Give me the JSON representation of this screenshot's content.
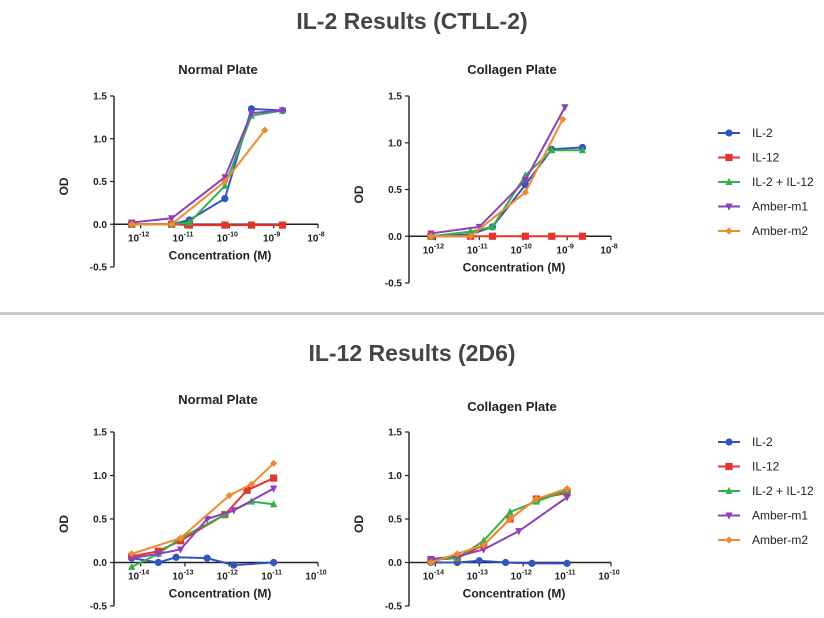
{
  "section_titles": [
    "IL-2 Results (CTLL-2)",
    "IL-12 Results (2D6)"
  ],
  "legend": [
    {
      "name": "IL-2",
      "color": "#2e55c2",
      "marker": "circle"
    },
    {
      "name": "IL-12",
      "color": "#e8332d",
      "marker": "square"
    },
    {
      "name": "IL-2 + IL-12",
      "color": "#2fb34a",
      "marker": "triangle-up"
    },
    {
      "name": "Amber-m1",
      "color": "#8e3fbf",
      "marker": "triangle-down"
    },
    {
      "name": "Amber-m2",
      "color": "#f18a2a",
      "marker": "diamond"
    }
  ],
  "chart_data": [
    {
      "type": "line",
      "title": "Normal Plate",
      "section": "IL-2 Results (CTLL-2)",
      "xlabel": "Concentration (M)",
      "ylabel": "OD",
      "xscale": "log",
      "xlim_exp": [
        -12.6,
        -8
      ],
      "ylim": [
        -0.5,
        1.5
      ],
      "yticks": [
        "1.5",
        "1.0",
        "0.5",
        "0.0",
        "-0.5"
      ],
      "xtick_exps": [
        -12,
        -11,
        -10,
        -9,
        -8
      ],
      "series": [
        {
          "name": "IL-2",
          "points": [
            [
              -12.2,
              0.0
            ],
            [
              -11.3,
              0.0
            ],
            [
              -10.9,
              0.05
            ],
            [
              -10.1,
              0.3
            ],
            [
              -9.5,
              1.35
            ],
            [
              -8.8,
              1.33
            ]
          ]
        },
        {
          "name": "IL-12",
          "points": [
            [
              -12.2,
              0.0
            ],
            [
              -11.3,
              0.0
            ],
            [
              -10.9,
              -0.01
            ],
            [
              -10.1,
              -0.01
            ],
            [
              -9.5,
              -0.01
            ],
            [
              -8.8,
              -0.01
            ]
          ]
        },
        {
          "name": "IL-2 + IL-12",
          "points": [
            [
              -12.2,
              0.0
            ],
            [
              -11.3,
              0.0
            ],
            [
              -10.9,
              0.02
            ],
            [
              -10.1,
              0.45
            ],
            [
              -9.5,
              1.27
            ],
            [
              -8.8,
              1.33
            ]
          ]
        },
        {
          "name": "Amber-m1",
          "points": [
            [
              -12.2,
              0.02
            ],
            [
              -11.3,
              0.07
            ],
            [
              -10.1,
              0.55
            ],
            [
              -9.5,
              1.3
            ],
            [
              -8.8,
              1.33
            ]
          ]
        },
        {
          "name": "Amber-m2",
          "points": [
            [
              -12.2,
              0.0
            ],
            [
              -11.3,
              0.0
            ],
            [
              -10.1,
              0.5
            ],
            [
              -9.2,
              1.1
            ]
          ]
        }
      ]
    },
    {
      "type": "line",
      "title": "Collagen Plate",
      "section": "IL-2 Results (CTLL-2)",
      "xlabel": "Concentration (M)",
      "ylabel": "OD",
      "xscale": "log",
      "xlim_exp": [
        -12.6,
        -8
      ],
      "ylim": [
        -0.5,
        1.5
      ],
      "yticks": [
        "1.5",
        "1.0",
        "0.5",
        "0.0",
        "-0.5"
      ],
      "xtick_exps": [
        -12,
        -11,
        -10,
        -9,
        -8
      ],
      "series": [
        {
          "name": "IL-2",
          "points": [
            [
              -12.1,
              0.0
            ],
            [
              -11.2,
              0.02
            ],
            [
              -10.7,
              0.1
            ],
            [
              -9.95,
              0.55
            ],
            [
              -9.35,
              0.93
            ],
            [
              -8.65,
              0.95
            ]
          ]
        },
        {
          "name": "IL-12",
          "points": [
            [
              -12.1,
              0.0
            ],
            [
              -11.2,
              0.0
            ],
            [
              -10.7,
              0.0
            ],
            [
              -9.95,
              0.0
            ],
            [
              -9.35,
              0.0
            ],
            [
              -8.65,
              0.0
            ]
          ]
        },
        {
          "name": "IL-2 + IL-12",
          "points": [
            [
              -12.1,
              0.0
            ],
            [
              -11.2,
              0.05
            ],
            [
              -10.7,
              0.1
            ],
            [
              -9.95,
              0.65
            ],
            [
              -9.35,
              0.92
            ],
            [
              -8.65,
              0.92
            ]
          ]
        },
        {
          "name": "Amber-m1",
          "points": [
            [
              -12.1,
              0.03
            ],
            [
              -11.0,
              0.1
            ],
            [
              -9.95,
              0.6
            ],
            [
              -9.05,
              1.38
            ]
          ]
        },
        {
          "name": "Amber-m2",
          "points": [
            [
              -12.1,
              0.0
            ],
            [
              -11.2,
              0.0
            ],
            [
              -9.95,
              0.47
            ],
            [
              -9.1,
              1.25
            ]
          ]
        }
      ]
    },
    {
      "type": "line",
      "title": "Normal Plate",
      "section": "IL-12 Results (2D6)",
      "xlabel": "Concentration (M)",
      "ylabel": "OD",
      "xscale": "log",
      "xlim_exp": [
        -14.6,
        -10
      ],
      "ylim": [
        -0.5,
        1.5
      ],
      "yticks": [
        "1.5",
        "1.0",
        "0.5",
        "0.0",
        "-0.5"
      ],
      "xtick_exps": [
        -14,
        -13,
        -12,
        -11,
        -10
      ],
      "series": [
        {
          "name": "IL-2",
          "points": [
            [
              -14.2,
              0.05
            ],
            [
              -13.6,
              0.0
            ],
            [
              -13.2,
              0.06
            ],
            [
              -12.5,
              0.05
            ],
            [
              -11.9,
              -0.03
            ],
            [
              -11.0,
              0.0
            ]
          ]
        },
        {
          "name": "IL-12",
          "points": [
            [
              -14.2,
              0.07
            ],
            [
              -13.6,
              0.13
            ],
            [
              -13.1,
              0.25
            ],
            [
              -12.1,
              0.55
            ],
            [
              -11.6,
              0.83
            ],
            [
              -11.0,
              0.97
            ]
          ]
        },
        {
          "name": "IL-2 + IL-12",
          "points": [
            [
              -14.2,
              -0.05
            ],
            [
              -13.6,
              0.1
            ],
            [
              -13.1,
              0.28
            ],
            [
              -12.1,
              0.55
            ],
            [
              -11.5,
              0.7
            ],
            [
              -11.0,
              0.67
            ]
          ]
        },
        {
          "name": "Amber-m1",
          "points": [
            [
              -14.2,
              0.05
            ],
            [
              -13.6,
              0.1
            ],
            [
              -13.1,
              0.15
            ],
            [
              -12.5,
              0.5
            ],
            [
              -11.9,
              0.6
            ],
            [
              -11.0,
              0.85
            ]
          ]
        },
        {
          "name": "Amber-m2",
          "points": [
            [
              -14.2,
              0.1
            ],
            [
              -13.1,
              0.28
            ],
            [
              -12.0,
              0.77
            ],
            [
              -11.5,
              0.9
            ],
            [
              -11.0,
              1.14
            ]
          ]
        }
      ]
    },
    {
      "type": "line",
      "title": "Collagen Plate",
      "section": "IL-12 Results (2D6)",
      "xlabel": "Concentration (M)",
      "ylabel": "OD",
      "xscale": "log",
      "xlim_exp": [
        -14.6,
        -10
      ],
      "ylim": [
        -0.5,
        1.5
      ],
      "yticks": [
        "1.5",
        "1.0",
        "0.5",
        "0.0",
        "-0.5"
      ],
      "xtick_exps": [
        -14,
        -13,
        -12,
        -11,
        -10
      ],
      "series": [
        {
          "name": "IL-2",
          "points": [
            [
              -14.1,
              0.0
            ],
            [
              -13.5,
              0.0
            ],
            [
              -13.0,
              0.02
            ],
            [
              -12.4,
              0.0
            ],
            [
              -11.8,
              -0.01
            ],
            [
              -11.0,
              -0.01
            ]
          ]
        },
        {
          "name": "IL-12",
          "points": [
            [
              -14.1,
              0.03
            ],
            [
              -13.5,
              0.05
            ],
            [
              -12.9,
              0.2
            ],
            [
              -12.3,
              0.5
            ],
            [
              -11.7,
              0.73
            ],
            [
              -11.0,
              0.8
            ]
          ]
        },
        {
          "name": "IL-2 + IL-12",
          "points": [
            [
              -14.1,
              0.03
            ],
            [
              -13.5,
              0.05
            ],
            [
              -12.9,
              0.25
            ],
            [
              -12.3,
              0.58
            ],
            [
              -11.7,
              0.7
            ],
            [
              -11.0,
              0.83
            ]
          ]
        },
        {
          "name": "Amber-m1",
          "points": [
            [
              -14.1,
              0.04
            ],
            [
              -13.5,
              0.07
            ],
            [
              -12.9,
              0.15
            ],
            [
              -12.1,
              0.36
            ],
            [
              -11.0,
              0.75
            ]
          ]
        },
        {
          "name": "Amber-m2",
          "points": [
            [
              -14.1,
              0.0
            ],
            [
              -13.5,
              0.1
            ],
            [
              -12.9,
              0.2
            ],
            [
              -12.3,
              0.5
            ],
            [
              -11.7,
              0.73
            ],
            [
              -11.0,
              0.85
            ]
          ]
        }
      ]
    }
  ]
}
